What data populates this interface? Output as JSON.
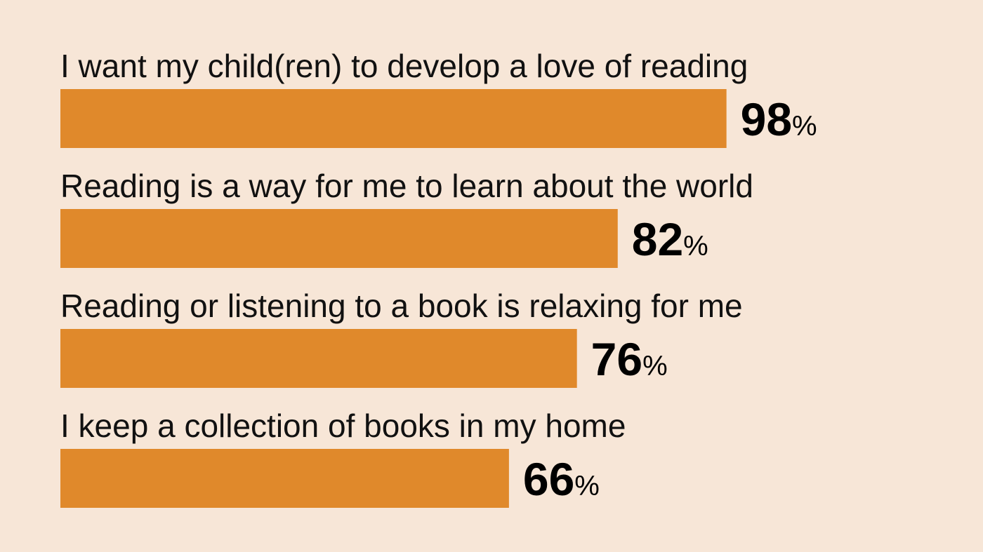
{
  "chart_data": {
    "type": "bar",
    "orientation": "horizontal",
    "categories": [
      "I want my child(ren) to develop a love of reading",
      "Reading is a way for me to learn about the world",
      "Reading or listening to a book is relaxing for me",
      "I keep a collection of books in my home"
    ],
    "values": [
      98,
      82,
      76,
      66
    ],
    "unit": "%",
    "xlim": [
      0,
      100
    ],
    "grid": false,
    "legend": "none",
    "title": "",
    "xlabel": "",
    "ylabel": ""
  },
  "colors": {
    "background": "#f7e6d7",
    "bar": "#e0892b",
    "text": "#111111"
  }
}
